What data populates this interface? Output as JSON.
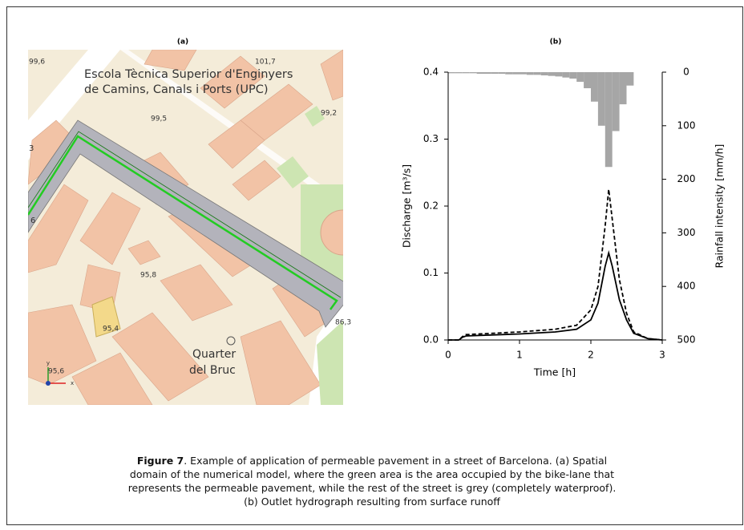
{
  "panel_a": {
    "label": "(a)"
  },
  "map": {
    "labels": [
      "Escola Tècnica Superior d'Enginyers",
      "de Camins, Canals i Ports (UPC)",
      "99,6",
      "101,7",
      "99,5",
      "99,2",
      "95,8",
      "95,4",
      "95,6",
      "86,3",
      "3",
      "6",
      "Quarter",
      "del Bruc",
      "y",
      "x"
    ]
  },
  "chart_data": {
    "type": "line",
    "title": "(b)",
    "xlabel": "Time [h]",
    "ylabel": "Discharge [m³/s]",
    "y2label": "Rainfall intensity [mm/h]",
    "x": [
      0,
      0.15,
      0.2,
      0.25,
      1,
      1.5,
      1.8,
      2.0,
      2.1,
      2.2,
      2.25,
      2.3,
      2.4,
      2.5,
      2.6,
      2.8,
      3
    ],
    "series": [
      {
        "color": "#000000",
        "dash": false,
        "values": [
          0,
          0,
          0.004,
          0.006,
          0.009,
          0.012,
          0.016,
          0.03,
          0.055,
          0.11,
          0.13,
          0.11,
          0.06,
          0.03,
          0.01,
          0.002,
          0
        ]
      },
      {
        "color": "#000000",
        "dash": true,
        "values": [
          0,
          0,
          0.005,
          0.008,
          0.012,
          0.016,
          0.022,
          0.045,
          0.08,
          0.17,
          0.225,
          0.18,
          0.09,
          0.04,
          0.012,
          0.002,
          0
        ]
      }
    ],
    "hyetograph": {
      "type": "histogram",
      "axis": "y2",
      "color": "#a6a6a6",
      "bins": [
        0,
        0.1,
        0.2,
        0.3,
        0.4,
        0.5,
        0.6,
        0.7,
        0.8,
        0.9,
        1.0,
        1.1,
        1.2,
        1.3,
        1.4,
        1.5,
        1.6,
        1.7,
        1.8,
        1.9,
        2.0,
        2.1,
        2.2,
        2.3,
        2.4,
        2.5,
        2.6
      ],
      "values": [
        2,
        2,
        2,
        2,
        3,
        3,
        3,
        3,
        4,
        4,
        4,
        5,
        5,
        6,
        7,
        8,
        10,
        12,
        18,
        30,
        55,
        100,
        177,
        110,
        60,
        25
      ]
    },
    "xlim": [
      0,
      3
    ],
    "xticks": [
      0,
      1,
      2,
      3
    ],
    "ylim": [
      0,
      0.4
    ],
    "yticks": [
      {
        "value": 0,
        "label": "0.0"
      },
      {
        "value": 0.1,
        "label": "0.1"
      },
      {
        "value": 0.2,
        "label": "0.2"
      },
      {
        "value": 0.3,
        "label": "0.3"
      },
      {
        "value": 0.4,
        "label": "0.4"
      }
    ],
    "y2lim": [
      0,
      500
    ],
    "y2ticks": [
      0,
      100,
      200,
      300,
      400,
      500
    ],
    "y2_inverted": true
  },
  "caption": {
    "label": "Figure 7",
    "text": ". Example of application of permeable pavement in a street of Barcelona. (a) Spatial domain of the numerical model, where the green area is the area occupied by the bike-lane that represents the permeable pavement, while the rest of the street is grey (completely waterproof). (b) Outlet hydrograph resulting from surface runoff"
  }
}
